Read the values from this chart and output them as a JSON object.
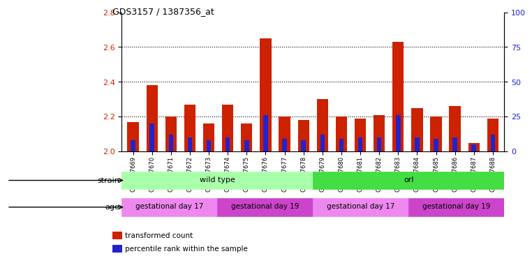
{
  "title": "GDS3157 / 1387356_at",
  "samples": [
    "GSM187669",
    "GSM187670",
    "GSM187671",
    "GSM187672",
    "GSM187673",
    "GSM187674",
    "GSM187675",
    "GSM187676",
    "GSM187677",
    "GSM187678",
    "GSM187679",
    "GSM187680",
    "GSM187681",
    "GSM187682",
    "GSM187683",
    "GSM187684",
    "GSM187685",
    "GSM187686",
    "GSM187687",
    "GSM187688"
  ],
  "transformed_count": [
    2.17,
    2.38,
    2.2,
    2.27,
    2.16,
    2.27,
    2.16,
    2.65,
    2.2,
    2.18,
    2.3,
    2.2,
    2.19,
    2.21,
    2.63,
    2.25,
    2.2,
    2.26,
    2.05,
    2.19
  ],
  "percentile_rank": [
    8,
    20,
    12,
    10,
    8,
    10,
    8,
    26,
    9,
    8,
    12,
    9,
    10,
    10,
    26,
    10,
    9,
    10,
    5,
    12
  ],
  "baseline": 2.0,
  "ylim_left": [
    2.0,
    2.8
  ],
  "ylim_right": [
    0,
    100
  ],
  "yticks_left": [
    2.0,
    2.2,
    2.4,
    2.6,
    2.8
  ],
  "yticks_right": [
    0,
    25,
    50,
    75,
    100
  ],
  "bar_color_red": "#cc2200",
  "bar_color_blue": "#2222cc",
  "strain_groups": [
    {
      "label": "wild type",
      "start": 0,
      "end": 9,
      "color": "#aaffaa"
    },
    {
      "label": "orl",
      "start": 10,
      "end": 19,
      "color": "#44dd44"
    }
  ],
  "age_groups": [
    {
      "label": "gestational day 17",
      "start": 0,
      "end": 4,
      "color": "#ee88ee"
    },
    {
      "label": "gestational day 19",
      "start": 5,
      "end": 9,
      "color": "#cc44cc"
    },
    {
      "label": "gestational day 17",
      "start": 10,
      "end": 14,
      "color": "#ee88ee"
    },
    {
      "label": "gestational day 19",
      "start": 15,
      "end": 19,
      "color": "#cc44cc"
    }
  ],
  "legend_items": [
    {
      "label": "transformed count",
      "color": "#cc2200"
    },
    {
      "label": "percentile rank within the sample",
      "color": "#2222cc"
    }
  ],
  "strain_label": "strain",
  "age_label": "age",
  "plot_bg": "#ffffff",
  "fig_bg": "#ffffff"
}
